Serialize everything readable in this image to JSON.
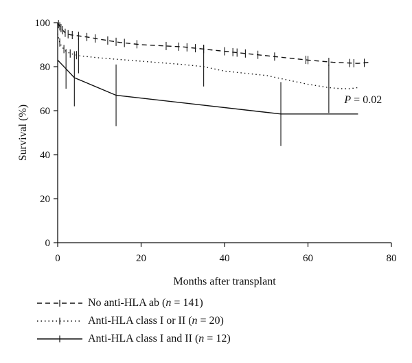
{
  "chart_data": {
    "type": "line",
    "title": "",
    "xlabel": "Months after transplant",
    "ylabel": "Survival (%)",
    "xlim": [
      0,
      80
    ],
    "ylim": [
      0,
      100
    ],
    "xticks": [
      0,
      20,
      40,
      60,
      80
    ],
    "yticks": [
      0,
      20,
      40,
      60,
      80,
      100
    ],
    "grid": false,
    "legend_position": "bottom",
    "annotation": {
      "prefix": "P",
      "text": " = 0.02",
      "x": 72,
      "y": 65
    },
    "series": [
      {
        "name": "No anti-HLA ab",
        "n_label": "n",
        "n_text": " = 141)",
        "name_open": " (",
        "style": "dashed",
        "x": [
          0,
          0.3,
          0.6,
          1,
          1.5,
          2,
          3,
          5,
          7,
          10,
          15,
          20,
          30,
          40,
          50,
          60,
          66,
          72,
          75
        ],
        "y": [
          100,
          99,
          98,
          97,
          96,
          95,
          94.5,
          94,
          93.5,
          92.5,
          91,
          90,
          89,
          87,
          85,
          83,
          82,
          81.5,
          82
        ],
        "censor_x": [
          0.2,
          0.5,
          0.8,
          1.2,
          1.8,
          2.5,
          3.5,
          5,
          7,
          9,
          12,
          14,
          16,
          19,
          26,
          29,
          31,
          33,
          35,
          40,
          42,
          43,
          45,
          48,
          52,
          59.5,
          60,
          65,
          70,
          71,
          73.5
        ]
      },
      {
        "name": "Anti-HLA class I or II",
        "n_label": "n",
        "n_text": " = 20)",
        "name_open": " (",
        "style": "dotted",
        "x": [
          0,
          0.5,
          1,
          1.5,
          2,
          3,
          5,
          10,
          20,
          30,
          35,
          40,
          50,
          55,
          60,
          65,
          68,
          70,
          72
        ],
        "y": [
          95,
          91,
          89,
          88,
          87,
          86,
          85,
          84,
          82.5,
          81,
          80,
          78,
          76,
          74,
          72,
          70.5,
          70,
          70,
          70.5
        ],
        "censor_x": [
          0.5,
          1.5,
          3,
          4.5
        ]
      },
      {
        "name": "Anti-HLA class I and II",
        "n_label": "n",
        "n_text": " = 12)",
        "name_open": " (",
        "style": "solid",
        "x": [
          0,
          2,
          4,
          14,
          53.5,
          72
        ],
        "y": [
          83,
          79,
          75,
          67,
          58.5,
          58.5
        ],
        "error_bars": [
          {
            "x": 2,
            "low": 70,
            "high": 88
          },
          {
            "x": 4,
            "low": 62,
            "high": 87
          },
          {
            "x": 5,
            "low": 77,
            "high": 93
          },
          {
            "x": 14,
            "low": 53,
            "high": 81
          },
          {
            "x": 35,
            "low": 71,
            "high": 90
          },
          {
            "x": 53.5,
            "low": 44,
            "high": 73
          },
          {
            "x": 65,
            "low": 59,
            "high": 81
          }
        ]
      }
    ]
  }
}
